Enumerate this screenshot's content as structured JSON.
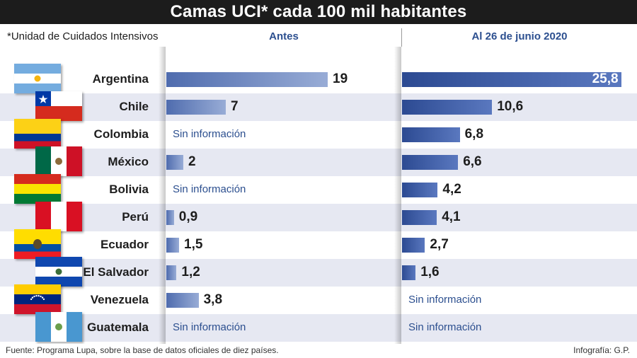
{
  "title": "Camas UCI* cada 100 mil habitantes",
  "note": "*Unidad de Cuidados Intensivos",
  "footer": {
    "source": "Fuente: Programa Lupa, sobre la base de datos oficiales de diez países.",
    "credit": "Infografía: G.P."
  },
  "colors": {
    "header_bg": "#1c1c1c",
    "column_header": "#2c4f8f",
    "bar_antes": "#7389c2",
    "bar_actual": "#3c5aa6",
    "row_shade": "#e6e8f2"
  },
  "chart_data": {
    "type": "bar",
    "orientation": "horizontal",
    "title": "Camas UCI* cada 100 mil habitantes",
    "categories": [
      "Argentina",
      "Chile",
      "Colombia",
      "México",
      "Bolivia",
      "Perú",
      "Ecuador",
      "El Salvador",
      "Venezuela",
      "Guatemala"
    ],
    "series": [
      {
        "name": "Antes",
        "values": [
          19,
          7,
          null,
          2,
          null,
          0.9,
          1.5,
          1.2,
          3.8,
          null
        ],
        "labels": [
          "19",
          "7",
          "Sin información",
          "2",
          "Sin información",
          "0,9",
          "1,5",
          "1,2",
          "3,8",
          "Sin información"
        ]
      },
      {
        "name": "Al 26 de junio 2020",
        "values": [
          25.8,
          10.6,
          6.8,
          6.6,
          4.2,
          4.1,
          2.7,
          1.6,
          null,
          null
        ],
        "labels": [
          "25,8",
          "10,6",
          "6,8",
          "6,6",
          "4,2",
          "4,1",
          "2,7",
          "1,6",
          "Sin información",
          "Sin información"
        ]
      }
    ],
    "flags": [
      "argentina-flag",
      "chile-flag",
      "colombia-flag",
      "mexico-flag",
      "bolivia-flag",
      "peru-flag",
      "ecuador-flag",
      "el-salvador-flag",
      "venezuela-flag",
      "guatemala-flag"
    ],
    "grid": false,
    "legend": "column-headers-top"
  }
}
